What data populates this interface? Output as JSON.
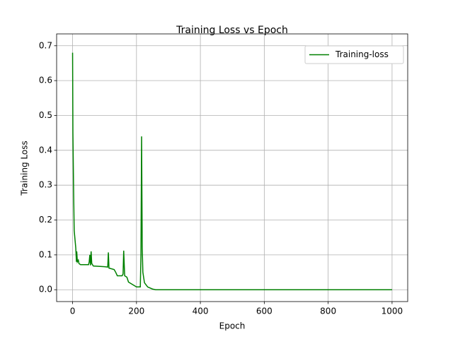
{
  "chart_data": {
    "type": "line",
    "title": "Training Loss vs Epoch",
    "x_label": "Epoch",
    "y_label": "Training Loss",
    "x": [
      0,
      1,
      3,
      5,
      8,
      10,
      12,
      13,
      15,
      18,
      20,
      25,
      50,
      52,
      54,
      56,
      58,
      60,
      65,
      100,
      110,
      112,
      114,
      130,
      135,
      140,
      155,
      158,
      160,
      163,
      170,
      175,
      200,
      212,
      214,
      216,
      218,
      220,
      225,
      235,
      250,
      260,
      1000
    ],
    "series": [
      {
        "name": "Training-loss",
        "color": "#008000",
        "values": [
          0.68,
          0.45,
          0.3,
          0.17,
          0.14,
          0.12,
          0.08,
          0.11,
          0.08,
          0.085,
          0.075,
          0.072,
          0.072,
          0.08,
          0.1,
          0.07,
          0.11,
          0.075,
          0.068,
          0.066,
          0.065,
          0.107,
          0.062,
          0.058,
          0.05,
          0.04,
          0.04,
          0.045,
          0.112,
          0.04,
          0.036,
          0.022,
          0.008,
          0.008,
          0.1,
          0.44,
          0.12,
          0.05,
          0.02,
          0.008,
          0.002,
          0,
          0
        ]
      }
    ],
    "xlim": [
      -49.95,
      1048.95
    ],
    "ylim": [
      -0.034,
      0.734
    ],
    "xticks": [
      0,
      200,
      400,
      600,
      800,
      1000
    ],
    "yticks": [
      {
        "value": 0,
        "label": "0.0"
      },
      0.1,
      0.2,
      0.3,
      0.4,
      0.5,
      0.6,
      0.7
    ],
    "grid": true,
    "legend": "upper right"
  }
}
